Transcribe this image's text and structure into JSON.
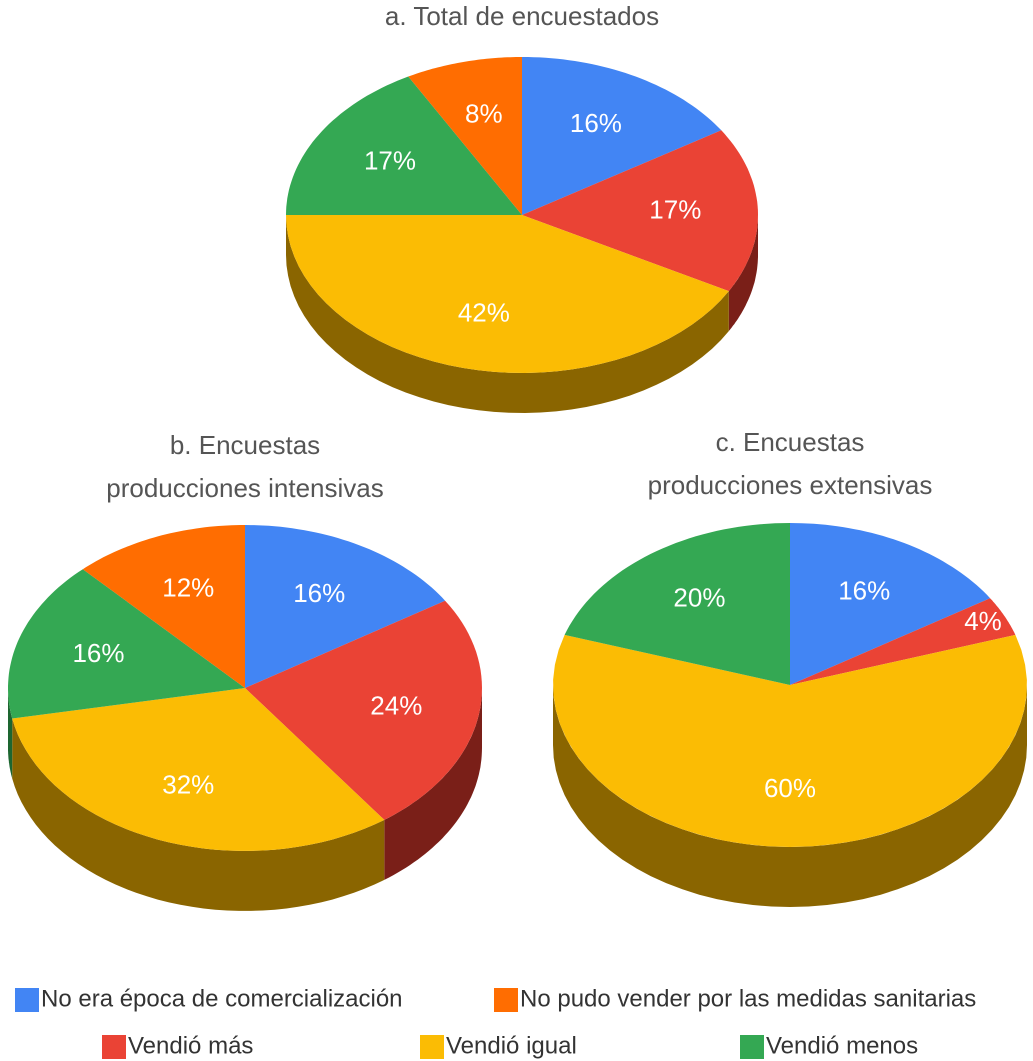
{
  "chart_data": [
    {
      "type": "pie",
      "title": [
        "a. Total de encuestados"
      ],
      "values": [
        16,
        17,
        42,
        17,
        8
      ],
      "value_labels": [
        "16%",
        "17%",
        "42%",
        "17%",
        "8%"
      ]
    },
    {
      "type": "pie",
      "title": [
        "b. Encuestas",
        "producciones intensivas"
      ],
      "values": [
        16,
        24,
        32,
        16,
        12
      ],
      "value_labels": [
        "16%",
        "24%",
        "32%",
        "16%",
        "12%"
      ]
    },
    {
      "type": "pie",
      "title": [
        "c. Encuestas",
        "producciones extensivas"
      ],
      "values": [
        16,
        4,
        60,
        20
      ],
      "value_labels": [
        "16%",
        "4%",
        "60%",
        "20%"
      ]
    }
  ],
  "legend": {
    "names": [
      "No era época de comercialización",
      "Vendió más",
      "Vendió igual",
      "Vendió menos",
      "No pudo vender por las medidas sanitarias"
    ],
    "colors": [
      "#4285f4",
      "#ea4335",
      "#fbbc04",
      "#34a853",
      "#ff6d01"
    ],
    "side_colors": [
      "#2a5aa8",
      "#7a1f18",
      "#8a6500",
      "#1d6630",
      "#9a4200"
    ]
  }
}
